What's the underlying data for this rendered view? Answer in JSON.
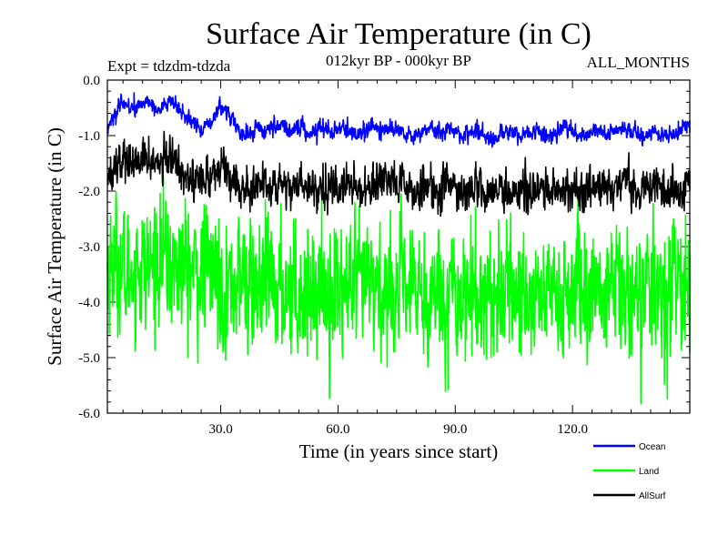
{
  "chart_data": {
    "type": "line",
    "title": "Surface Air Temperature (in C)",
    "subtitle": "012kyr BP - 000kyr BP",
    "experiment": "Expt = tdzdm-tdzda",
    "months_label": "ALL_MONTHS",
    "xlabel": "Time (in years since start)",
    "ylabel": "Surface Air Temperature (in C)",
    "xlim": [
      1,
      150
    ],
    "ylim": [
      -6.0,
      0.0
    ],
    "x_ticks": [
      30,
      60,
      90,
      120
    ],
    "x_tick_labels": [
      "30.0",
      "60.0",
      "90.0",
      "120.0"
    ],
    "y_ticks": [
      0.0,
      -1.0,
      -2.0,
      -3.0,
      -4.0,
      -5.0,
      -6.0
    ],
    "y_tick_labels": [
      "0.0",
      "-1.0",
      "-2.0",
      "-3.0",
      "-4.0",
      "-5.0",
      "-6.0"
    ],
    "samples_per_year": 12,
    "legend_position": "bottom-right",
    "series": [
      {
        "name": "Ocean",
        "color": "#0000ff",
        "noise": 0.07,
        "annual_means": [
          -0.84,
          -0.75,
          -0.62,
          -0.52,
          -0.45,
          -0.42,
          -0.48,
          -0.55,
          -0.5,
          -0.42,
          -0.36,
          -0.4,
          -0.48,
          -0.55,
          -0.5,
          -0.42,
          -0.38,
          -0.44,
          -0.52,
          -0.6,
          -0.66,
          -0.72,
          -0.78,
          -0.82,
          -0.86,
          -0.88,
          -0.82,
          -0.72,
          -0.58,
          -0.5,
          -0.52,
          -0.6,
          -0.7,
          -0.82,
          -0.95,
          -1.02,
          -0.98,
          -0.9,
          -0.86,
          -0.88,
          -0.92,
          -0.9,
          -0.86,
          -0.82,
          -0.8,
          -0.84,
          -0.88,
          -0.9,
          -0.86,
          -0.82,
          -0.86,
          -0.92,
          -0.96,
          -0.92,
          -0.86,
          -0.82,
          -0.84,
          -0.9,
          -0.94,
          -0.92,
          -0.88,
          -0.86,
          -0.9,
          -0.94,
          -0.98,
          -0.96,
          -0.9,
          -0.86,
          -0.84,
          -0.86,
          -0.9,
          -0.94,
          -0.92,
          -0.88,
          -0.86,
          -0.88,
          -0.92,
          -0.98,
          -1.02,
          -1.0,
          -0.94,
          -0.88,
          -0.86,
          -0.9,
          -0.94,
          -0.96,
          -0.92,
          -0.88,
          -0.86,
          -0.9,
          -0.96,
          -1.0,
          -1.02,
          -0.98,
          -0.92,
          -0.9,
          -0.94,
          -0.98,
          -1.04,
          -1.08,
          -1.04,
          -0.98,
          -0.94,
          -0.96,
          -1.0,
          -1.04,
          -1.0,
          -0.96,
          -0.92,
          -0.9,
          -0.92,
          -0.96,
          -1.0,
          -1.04,
          -1.0,
          -0.94,
          -0.9,
          -0.88,
          -0.9,
          -0.94,
          -0.98,
          -1.02,
          -1.0,
          -0.96,
          -0.92,
          -0.9,
          -0.92,
          -0.96,
          -0.98,
          -0.96,
          -0.92,
          -0.88,
          -0.86,
          -0.88,
          -0.92,
          -0.96,
          -1.0,
          -1.02,
          -0.98,
          -0.94,
          -0.92,
          -0.94,
          -0.98,
          -1.02,
          -1.05,
          -1.0,
          -0.94,
          -0.88,
          -0.82,
          -0.8
        ]
      },
      {
        "name": "Land",
        "color": "#00ff00",
        "noise": 0.55,
        "annual_means": [
          -3.4,
          -3.3,
          -3.25,
          -3.35,
          -3.5,
          -3.55,
          -3.45,
          -3.35,
          -3.3,
          -3.38,
          -3.45,
          -3.4,
          -3.3,
          -3.2,
          -3.15,
          -3.25,
          -3.35,
          -3.4,
          -3.35,
          -3.3,
          -3.38,
          -3.45,
          -3.5,
          -3.55,
          -3.5,
          -3.45,
          -3.4,
          -3.45,
          -3.52,
          -3.6,
          -3.7,
          -3.75,
          -3.7,
          -3.6,
          -3.55,
          -3.6,
          -3.68,
          -3.75,
          -3.8,
          -3.78,
          -3.72,
          -3.68,
          -3.7,
          -3.75,
          -3.8,
          -3.78,
          -3.72,
          -3.7,
          -3.72,
          -3.76,
          -3.8,
          -3.78,
          -3.75,
          -3.72,
          -3.7,
          -3.74,
          -3.78,
          -3.82,
          -3.8,
          -3.76,
          -3.74,
          -3.76,
          -3.8,
          -3.84,
          -3.82,
          -3.78,
          -3.74,
          -3.72,
          -3.74,
          -3.78,
          -3.82,
          -3.8,
          -3.76,
          -3.74,
          -3.76,
          -3.8,
          -3.84,
          -3.86,
          -3.82,
          -3.78,
          -3.76,
          -3.78,
          -3.82,
          -3.86,
          -3.84,
          -3.8,
          -3.78,
          -3.8,
          -3.84,
          -3.88,
          -3.86,
          -3.82,
          -3.8,
          -3.82,
          -3.86,
          -3.9,
          -3.88,
          -3.84,
          -3.82,
          -3.84,
          -3.88,
          -3.9,
          -3.88,
          -3.84,
          -3.8,
          -3.78,
          -3.8,
          -3.84,
          -3.88,
          -3.9,
          -3.86,
          -3.82,
          -3.8,
          -3.82,
          -3.86,
          -3.9,
          -3.92,
          -3.88,
          -3.84,
          -3.82,
          -3.84,
          -3.86,
          -3.88,
          -3.86,
          -3.82,
          -3.8,
          -3.82,
          -3.84,
          -3.86,
          -3.84,
          -3.8,
          -3.78,
          -3.8,
          -3.84,
          -3.88,
          -3.86,
          -3.82,
          -3.8,
          -3.82,
          -3.84,
          -3.86,
          -3.84,
          -3.8,
          -3.78,
          -3.76,
          -3.74,
          -3.72,
          -3.7,
          -3.7,
          -3.72
        ]
      },
      {
        "name": "AllSurf",
        "color": "#000000",
        "noise": 0.17,
        "annual_means": [
          -1.7,
          -1.62,
          -1.52,
          -1.45,
          -1.42,
          -1.44,
          -1.5,
          -1.54,
          -1.5,
          -1.44,
          -1.4,
          -1.42,
          -1.48,
          -1.54,
          -1.5,
          -1.44,
          -1.4,
          -1.45,
          -1.52,
          -1.6,
          -1.66,
          -1.72,
          -1.78,
          -1.82,
          -1.84,
          -1.82,
          -1.76,
          -1.68,
          -1.6,
          -1.56,
          -1.58,
          -1.64,
          -1.72,
          -1.84,
          -1.95,
          -1.98,
          -1.94,
          -1.88,
          -1.86,
          -1.88,
          -1.92,
          -1.9,
          -1.86,
          -1.84,
          -1.84,
          -1.88,
          -1.92,
          -1.94,
          -1.9,
          -1.86,
          -1.88,
          -1.92,
          -1.96,
          -1.94,
          -1.9,
          -1.86,
          -1.88,
          -1.92,
          -1.96,
          -1.94,
          -1.9,
          -1.88,
          -1.9,
          -1.94,
          -1.98,
          -1.96,
          -1.92,
          -1.88,
          -1.87,
          -1.88,
          -1.92,
          -1.96,
          -1.94,
          -1.9,
          -1.88,
          -1.9,
          -1.94,
          -1.98,
          -2.02,
          -2.0,
          -1.95,
          -1.9,
          -1.88,
          -1.9,
          -1.94,
          -1.98,
          -1.96,
          -1.92,
          -1.9,
          -1.92,
          -1.96,
          -2.0,
          -2.02,
          -1.98,
          -1.94,
          -1.92,
          -1.94,
          -1.98,
          -2.02,
          -2.05,
          -2.02,
          -1.98,
          -1.95,
          -1.96,
          -2.0,
          -2.04,
          -2.0,
          -1.96,
          -1.93,
          -1.92,
          -1.94,
          -1.98,
          -2.02,
          -2.04,
          -2.0,
          -1.96,
          -1.92,
          -1.9,
          -1.92,
          -1.96,
          -2.0,
          -2.03,
          -2.0,
          -1.96,
          -1.93,
          -1.92,
          -1.94,
          -1.97,
          -1.98,
          -1.96,
          -1.92,
          -1.9,
          -1.88,
          -1.9,
          -1.93,
          -1.96,
          -2.0,
          -2.02,
          -1.98,
          -1.95,
          -1.93,
          -1.94,
          -1.97,
          -2.0,
          -2.02,
          -1.98,
          -1.94,
          -1.88,
          -1.82,
          -1.8
        ]
      }
    ]
  }
}
